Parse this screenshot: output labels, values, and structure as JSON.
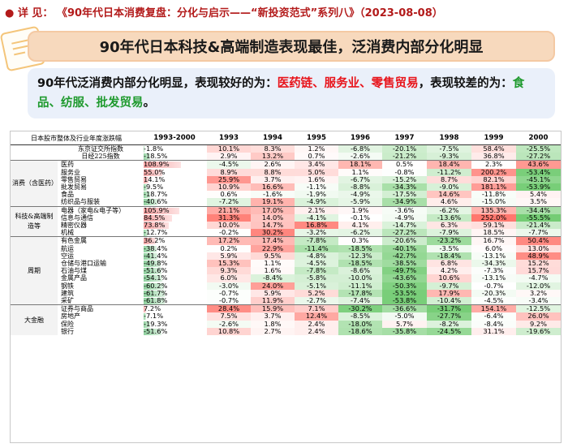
{
  "header": {
    "bullet": "●",
    "label": "详  见：",
    "reference": "《90年代日本消费复盘：分化与启示——“新投资范式”系列八》（2023-08-08）"
  },
  "title": "90年代日本科技&高端制造表现最佳，泛消费内部分化明显",
  "summary": {
    "part1": "90年代泛消费内部分化明显，表现较好的为：",
    "good": "医药链、服务业、零售贸易",
    "part2": "，表现较差的为：",
    "bad": "食品、纺服、批发贸易",
    "end": "。"
  },
  "table": {
    "corner_label": "日本股市整体及行业年度涨跌幅",
    "columns": [
      "1993-2000",
      "1993",
      "1994",
      "1995",
      "1996",
      "1997",
      "1998",
      "1999",
      "2000"
    ],
    "colors": {
      "positive": "#e8141b",
      "negative": "#2ea84a"
    },
    "groups": [
      {
        "label": "",
        "rows": [
          {
            "name": "东京证交所指数",
            "values": [
              "-1.8%",
              "10.1%",
              "8.3%",
              "1.2%",
              "-6.8%",
              "-20.1%",
              "-7.5%",
              "58.4%",
              "-25.5%"
            ],
            "num": [
              -1.8,
              10.1,
              8.3,
              1.2,
              -6.8,
              -20.1,
              -7.5,
              58.4,
              -25.5
            ]
          },
          {
            "name": "日经225指数",
            "values": [
              "-18.5%",
              "2.9%",
              "13.2%",
              "0.7%",
              "-2.6%",
              "-21.2%",
              "-9.3%",
              "36.8%",
              "-27.2%"
            ],
            "num": [
              -18.5,
              2.9,
              13.2,
              0.7,
              -2.6,
              -21.2,
              -9.3,
              36.8,
              -27.2
            ]
          }
        ]
      },
      {
        "label": "消费（含医药）",
        "rows": [
          {
            "name": "医药",
            "values": [
              "108.9%",
              "-4.5%",
              "2.6%",
              "3.4%",
              "18.1%",
              "0.5%",
              "18.4%",
              "2.3%",
              "43.6%"
            ],
            "num": [
              108.9,
              -4.5,
              2.6,
              3.4,
              18.1,
              0.5,
              18.4,
              2.3,
              43.6
            ]
          },
          {
            "name": "服务业",
            "values": [
              "55.0%",
              "8.9%",
              "8.8%",
              "5.0%",
              "1.1%",
              "-0.8%",
              "-11.2%",
              "200.2%",
              "-53.4%"
            ],
            "num": [
              55.0,
              8.9,
              8.8,
              5.0,
              1.1,
              -0.8,
              -11.2,
              200.2,
              -53.4
            ]
          },
          {
            "name": "零售贸易",
            "values": [
              "14.1%",
              "25.9%",
              "3.7%",
              "1.6%",
              "-6.7%",
              "-15.2%",
              "8.7%",
              "82.1%",
              "-45.1%"
            ],
            "num": [
              14.1,
              25.9,
              3.7,
              1.6,
              -6.7,
              -15.2,
              8.7,
              82.1,
              -45.1
            ]
          },
          {
            "name": "批发贸易",
            "values": [
              "-9.5%",
              "10.9%",
              "16.6%",
              "-1.1%",
              "-8.8%",
              "-34.3%",
              "-9.0%",
              "181.1%",
              "-53.9%"
            ],
            "num": [
              -9.5,
              10.9,
              16.6,
              -1.1,
              -8.8,
              -34.3,
              -9.0,
              181.1,
              -53.9
            ]
          },
          {
            "name": "食品",
            "values": [
              "-18.7%",
              "0.6%",
              "-1.6%",
              "-1.9%",
              "-4.9%",
              "-17.5%",
              "14.6%",
              "-11.8%",
              "5.4%"
            ],
            "num": [
              -18.7,
              0.6,
              -1.6,
              -1.9,
              -4.9,
              -17.5,
              14.6,
              -11.8,
              5.4
            ]
          },
          {
            "name": "纺织品与服装",
            "values": [
              "-40.6%",
              "-7.2%",
              "19.1%",
              "-4.9%",
              "-5.9%",
              "-34.9%",
              "4.6%",
              "-15.0%",
              "3.5%"
            ],
            "num": [
              -40.6,
              -7.2,
              19.1,
              -4.9,
              -5.9,
              -34.9,
              4.6,
              -15.0,
              3.5
            ]
          }
        ]
      },
      {
        "label": "科技&高端制造等",
        "rows": [
          {
            "name": "电器（家电&电子等）",
            "values": [
              "105.9%",
              "21.1%",
              "17.0%",
              "2.1%",
              "1.9%",
              "-3.6%",
              "-6.2%",
              "135.3%",
              "-34.4%"
            ],
            "num": [
              105.9,
              21.1,
              17.0,
              2.1,
              1.9,
              -3.6,
              -6.2,
              135.3,
              -34.4
            ]
          },
          {
            "name": "信息与通信",
            "values": [
              "84.5%",
              "31.3%",
              "14.0%",
              "-4.1%",
              "-0.1%",
              "-4.9%",
              "-13.6%",
              "252.0%",
              "-55.5%"
            ],
            "num": [
              84.5,
              31.3,
              14.0,
              -4.1,
              -0.1,
              -4.9,
              -13.6,
              252.0,
              -55.5
            ]
          },
          {
            "name": "精密仪器",
            "values": [
              "73.8%",
              "10.0%",
              "14.7%",
              "16.8%",
              "4.1%",
              "-14.7%",
              "6.3%",
              "59.1%",
              "-21.4%"
            ],
            "num": [
              73.8,
              10.0,
              14.7,
              16.8,
              4.1,
              -14.7,
              6.3,
              59.1,
              -21.4
            ]
          },
          {
            "name": "机械",
            "values": [
              "-12.7%",
              "-0.2%",
              "30.2%",
              "-3.2%",
              "-6.2%",
              "-27.2%",
              "-7.9%",
              "18.5%",
              "-7.7%"
            ],
            "num": [
              -12.7,
              -0.2,
              30.2,
              -3.2,
              -6.2,
              -27.2,
              -7.9,
              18.5,
              -7.7
            ]
          }
        ]
      },
      {
        "label": "周期",
        "rows": [
          {
            "name": "有色金属",
            "values": [
              "36.2%",
              "17.2%",
              "17.4%",
              "-7.8%",
              "0.3%",
              "-20.6%",
              "-23.2%",
              "16.7%",
              "50.4%"
            ],
            "num": [
              36.2,
              17.2,
              17.4,
              -7.8,
              0.3,
              -20.6,
              -23.2,
              16.7,
              50.4
            ]
          },
          {
            "name": "航运",
            "values": [
              "-38.4%",
              "0.2%",
              "22.9%",
              "-11.4%",
              "-18.5%",
              "-40.1%",
              "-3.5%",
              "6.0%",
              "13.0%"
            ],
            "num": [
              -38.4,
              0.2,
              22.9,
              -11.4,
              -18.5,
              -40.1,
              -3.5,
              6.0,
              13.0
            ]
          },
          {
            "name": "空运",
            "values": [
              "-41.4%",
              "5.9%",
              "9.5%",
              "-4.8%",
              "-12.3%",
              "-42.7%",
              "-18.4%",
              "-13.1%",
              "48.9%"
            ],
            "num": [
              -41.4,
              5.9,
              9.5,
              -4.8,
              -12.3,
              -42.7,
              -18.4,
              -13.1,
              48.9
            ]
          },
          {
            "name": "仓储与港口运输",
            "values": [
              "-49.8%",
              "15.3%",
              "1.1%",
              "-4.5%",
              "-18.5%",
              "-38.5%",
              "6.8%",
              "-34.3%",
              "15.2%"
            ],
            "num": [
              -49.8,
              15.3,
              1.1,
              -4.5,
              -18.5,
              -38.5,
              6.8,
              -34.3,
              15.2
            ]
          },
          {
            "name": "石油与煤",
            "values": [
              "-51.6%",
              "9.3%",
              "1.6%",
              "-7.8%",
              "-8.6%",
              "-49.7%",
              "4.2%",
              "-7.3%",
              "15.7%"
            ],
            "num": [
              -51.6,
              9.3,
              1.6,
              -7.8,
              -8.6,
              -49.7,
              4.2,
              -7.3,
              15.7
            ]
          },
          {
            "name": "金属产品",
            "values": [
              "-54.1%",
              "6.0%",
              "-8.4%",
              "-5.8%",
              "-10.0%",
              "-43.6%",
              "10.6%",
              "-13.1%",
              "-4.7%"
            ],
            "num": [
              -54.1,
              6.0,
              -8.4,
              -5.8,
              -10.0,
              -43.6,
              10.6,
              -13.1,
              -4.7
            ]
          },
          {
            "name": "钢铁",
            "values": [
              "-60.2%",
              "-3.0%",
              "24.0%",
              "-5.1%",
              "-11.1%",
              "-50.3%",
              "-9.7%",
              "-0.7%",
              "-12.0%"
            ],
            "num": [
              -60.2,
              -3.0,
              24.0,
              -5.1,
              -11.1,
              -50.3,
              -9.7,
              -0.7,
              -12.0
            ]
          },
          {
            "name": "建筑",
            "values": [
              "-61.7%",
              "-0.7%",
              "5.9%",
              "5.2%",
              "-17.8%",
              "-53.5%",
              "17.9%",
              "-20.3%",
              "3.2%"
            ],
            "num": [
              -61.7,
              -0.7,
              5.9,
              5.2,
              -17.8,
              -53.5,
              17.9,
              -20.3,
              3.2
            ]
          },
          {
            "name": "采矿",
            "values": [
              "-61.8%",
              "-0.7%",
              "11.9%",
              "-2.7%",
              "-7.4%",
              "-53.8%",
              "-10.4%",
              "-4.5%",
              "-3.4%"
            ],
            "num": [
              -61.8,
              -0.7,
              11.9,
              -2.7,
              -7.4,
              -53.8,
              -10.4,
              -4.5,
              -3.4
            ]
          }
        ]
      },
      {
        "label": "大金融",
        "rows": [
          {
            "name": "证券与商品",
            "values": [
              "7.2%",
              "28.4%",
              "15.9%",
              "7.1%",
              "-30.2%",
              "-36.6%",
              "-31.7%",
              "154.1%",
              "-12.5%"
            ],
            "num": [
              7.2,
              28.4,
              15.9,
              7.1,
              -30.2,
              -36.6,
              -31.7,
              154.1,
              -12.5
            ]
          },
          {
            "name": "房地产",
            "values": [
              "-7.1%",
              "7.5%",
              "3.7%",
              "12.4%",
              "-8.5%",
              "-5.0%",
              "-27.7%",
              "-6.4%",
              "26.0%"
            ],
            "num": [
              -7.1,
              7.5,
              3.7,
              12.4,
              -8.5,
              -5.0,
              -27.7,
              -6.4,
              26.0
            ]
          },
          {
            "name": "保险",
            "values": [
              "-19.3%",
              "-2.6%",
              "1.8%",
              "2.4%",
              "-18.0%",
              "5.7%",
              "-8.2%",
              "-8.4%",
              "9.2%"
            ],
            "num": [
              -19.3,
              -2.6,
              1.8,
              2.4,
              -18.0,
              5.7,
              -8.2,
              -8.4,
              9.2
            ]
          },
          {
            "name": "银行",
            "values": [
              "-51.6%",
              "10.8%",
              "2.7%",
              "2.4%",
              "-18.6%",
              "-35.8%",
              "-24.5%",
              "31.1%",
              "-19.6%"
            ],
            "num": [
              -51.6,
              10.8,
              2.7,
              2.4,
              -18.6,
              -35.8,
              -24.5,
              31.1,
              -19.6
            ]
          }
        ]
      }
    ]
  }
}
